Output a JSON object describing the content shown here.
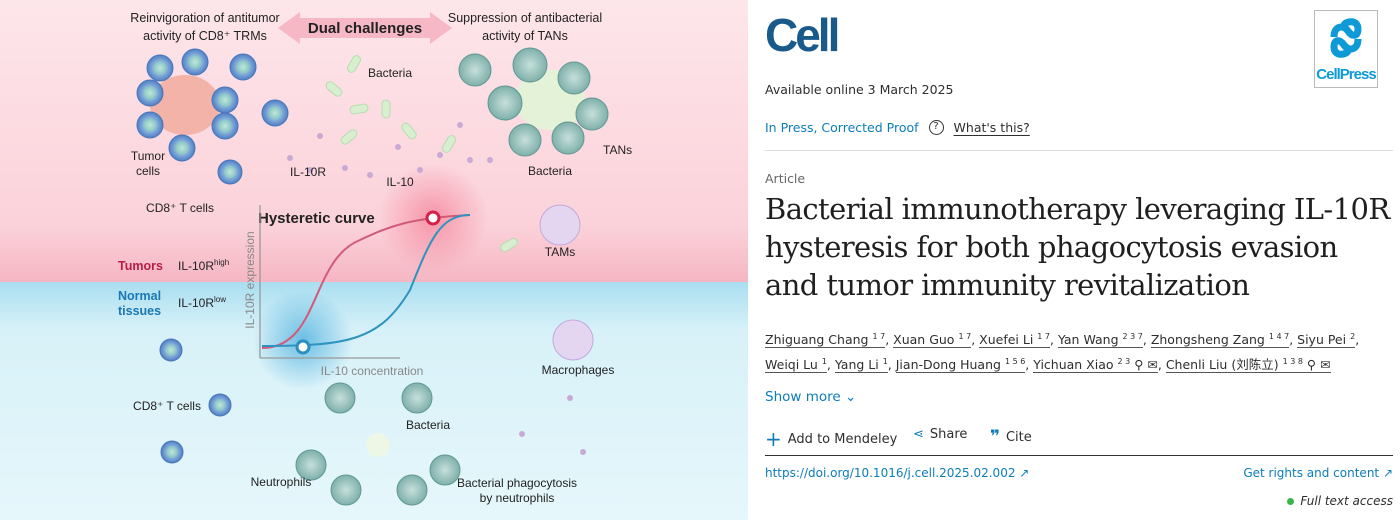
{
  "figure": {
    "top_left": [
      "Reinvigoration of antitumor",
      "activity of CD8⁺ TRMs"
    ],
    "center": "Dual challenges",
    "top_right": [
      "Suppression of antibacterial",
      "activity of TANs"
    ],
    "bacteria": "Bacteria",
    "tumor_cells": [
      "Tumor",
      "cells"
    ],
    "il10r": "IL-10R",
    "il10": "IL-10",
    "cd8_t_cells_top": "CD8⁺ T cells",
    "tans": "TANs",
    "bacteria_right": "Bacteria",
    "tams": "TAMs",
    "hysteretic": "Hysteretic curve",
    "y_axis": "IL-10R expression",
    "x_axis": "IL-10 concentration",
    "tumors": "Tumors",
    "il10r_high": "IL-10R",
    "high": "high",
    "normal": [
      "Normal",
      "tissues"
    ],
    "il10r_low": "IL-10R",
    "low": "low",
    "macrophages": "Macrophages",
    "cd8_t_cells_bottom": "CD8⁺ T cells",
    "bacteria_bottom": "Bacteria",
    "neutrophils": "Neutrophils",
    "phagocytosis": [
      "Bacterial phagocytosis",
      "by neutrophils"
    ],
    "colors": {
      "tumor_bg": "#fde3e8",
      "normal_bg": "#dff4f9",
      "red": "#d4204a",
      "blue": "#2a8fc0"
    }
  },
  "journal": {
    "logo": "Cell",
    "publisher_logo": "CellPress"
  },
  "available": "Available online 3 March 2025",
  "status": {
    "label": "In Press, Corrected Proof",
    "help": "What's this?"
  },
  "article_type": "Article",
  "title": "Bacterial immunotherapy leveraging IL-10R hysteresis for both phagocytosis evasion and tumor immunity revitalization",
  "authors": [
    {
      "name": "Zhiguang Chang",
      "sup": "1 7"
    },
    {
      "name": "Xuan Guo",
      "sup": "1 7"
    },
    {
      "name": "Xuefei Li",
      "sup": "1 7"
    },
    {
      "name": "Yan Wang",
      "sup": "2 3 7"
    },
    {
      "name": "Zhongsheng Zang",
      "sup": "1 4 7"
    },
    {
      "name": "Siyu Pei",
      "sup": "2"
    },
    {
      "name": "Weiqi Lu",
      "sup": "1"
    },
    {
      "name": "Yang Li",
      "sup": "1"
    },
    {
      "name": "Jian-Dong Huang",
      "sup": "1 5 6"
    },
    {
      "name": "Yichuan Xiao",
      "sup": "2 3"
    },
    {
      "name": "Chenli Liu (刘陈立)",
      "sup": "1 3 8"
    }
  ],
  "show_more": "Show more",
  "actions": {
    "mendeley": "Add to Mendeley",
    "share": "Share",
    "cite": "Cite"
  },
  "doi": "https://doi.org/10.1016/j.cell.2025.02.002",
  "rights": "Get rights and content",
  "access": "Full text access",
  "colors": {
    "link": "#0c7dbb",
    "access_dot": "#3ab54a",
    "logo": "#1a5a8b"
  }
}
